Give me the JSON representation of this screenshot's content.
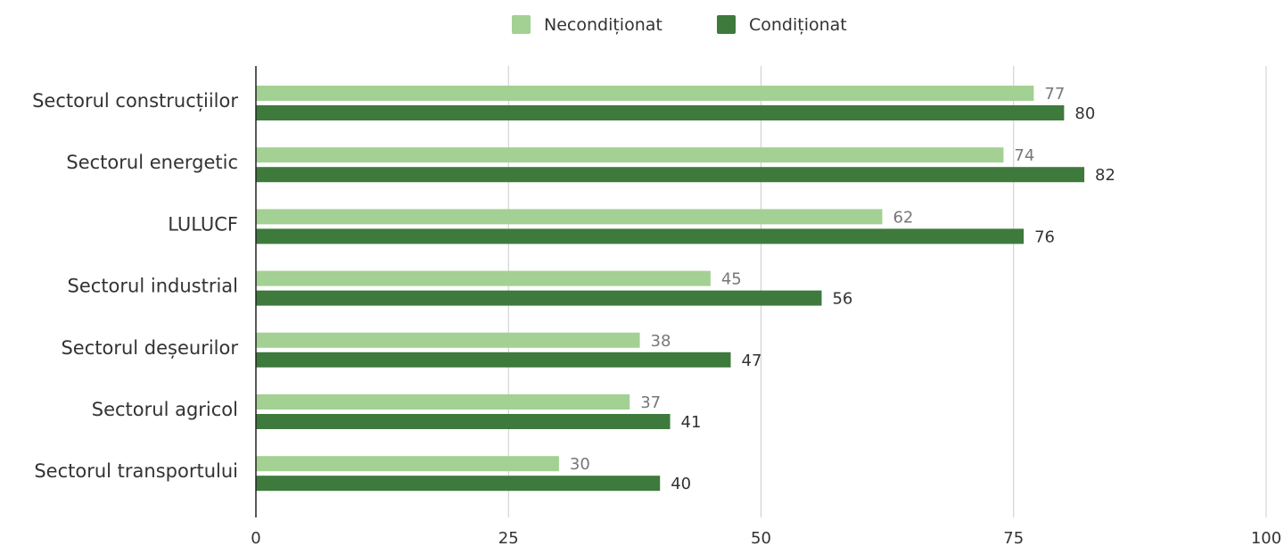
{
  "chart_data": {
    "type": "bar",
    "orientation": "horizontal",
    "categories": [
      "Sectorul construcțiilor",
      "Sectorul energetic",
      "LULUCF",
      "Sectorul industrial",
      "Sectorul deșeurilor",
      "Sectorul agricol",
      "Sectorul transportului"
    ],
    "series": [
      {
        "name": "Necondiționat",
        "color": "#a3d093",
        "values": [
          77,
          74,
          62,
          45,
          38,
          37,
          30
        ]
      },
      {
        "name": "Condiționat",
        "color": "#3d7a3c",
        "values": [
          80,
          82,
          76,
          56,
          47,
          41,
          40
        ]
      }
    ],
    "xlim": [
      0,
      100
    ],
    "xticks": [
      0,
      25,
      50,
      75,
      100
    ],
    "grid": true,
    "legend_position": "top-center",
    "data_labels": true
  }
}
